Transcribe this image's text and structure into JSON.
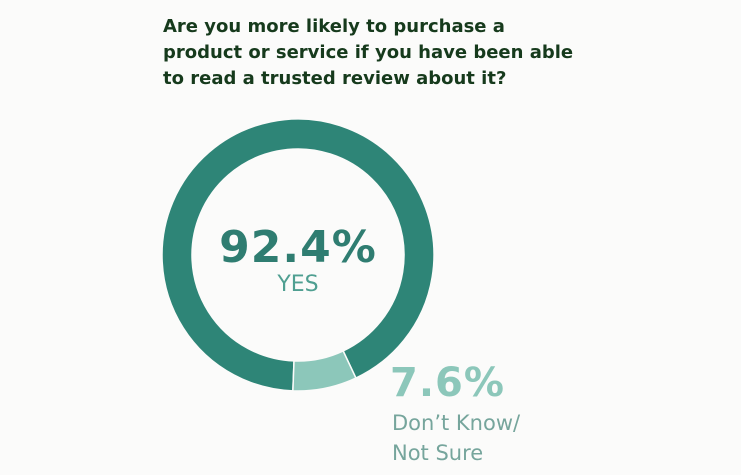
{
  "chart_data": {
    "type": "pie",
    "title": "Are you more likely to purchase a product or service if you have been able to read a trusted review about it?",
    "categories": [
      "YES",
      "Don’t Know/ Not Sure"
    ],
    "values": [
      92.4,
      7.6
    ],
    "value_labels": [
      "92.4%",
      "7.6%"
    ],
    "colors": [
      "#2e8577",
      "#8cc7ba"
    ]
  }
}
